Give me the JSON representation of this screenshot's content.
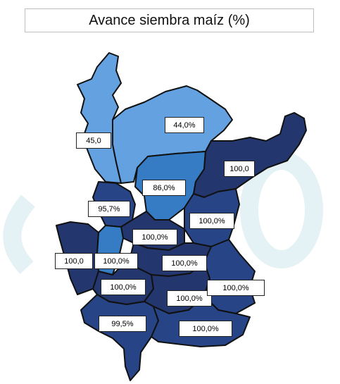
{
  "title": "Avance siembra maíz  (%)",
  "colors": {
    "light": "#5f9ee0",
    "medium": "#2e78c2",
    "dark": "#1f3e82",
    "darker": "#1c3068",
    "border": "#111111",
    "watermark": "#e4f1f5"
  },
  "regions": [
    {
      "id": "norte-oeste",
      "value": "45,0"
    },
    {
      "id": "norte-este",
      "value": "44,0%"
    },
    {
      "id": "centro-norte",
      "value": "86,0%"
    },
    {
      "id": "noreste",
      "value": "100,0"
    },
    {
      "id": "centro-oeste",
      "value": "95,7%"
    },
    {
      "id": "este-1",
      "value": "100,0%"
    },
    {
      "id": "centro",
      "value": "100,0%"
    },
    {
      "id": "oeste",
      "value": "100,0"
    },
    {
      "id": "centro-sur-oeste",
      "value": "100,0%"
    },
    {
      "id": "centro-sur",
      "value": "100,0%"
    },
    {
      "id": "sur-centro-oeste",
      "value": "100,0%"
    },
    {
      "id": "sur-centro",
      "value": "100,0%"
    },
    {
      "id": "sureste",
      "value": "100,0%"
    },
    {
      "id": "sur-oeste",
      "value": "99,5%"
    },
    {
      "id": "sur",
      "value": "100,0%"
    }
  ]
}
